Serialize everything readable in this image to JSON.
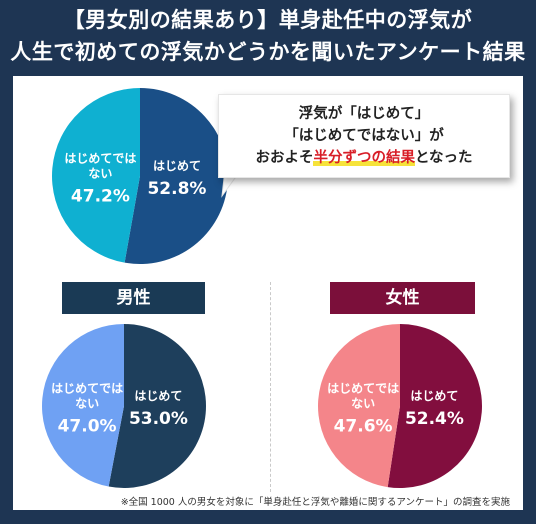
{
  "title": {
    "line1": "【男女別の結果あり】単身赴任中の浮気が",
    "line2": "人生で初めての浮気かどうかを聞いたアンケート結果"
  },
  "callout": {
    "line1": "浮気が「はじめて」",
    "line2": "「はじめてではない」が",
    "line3_pre": "おおよそ",
    "line3_highlight": "半分ずつの結果",
    "line3_post": "となった"
  },
  "footnote": "※全国 1000 人の男女を対象に「単身赴任と浮気や離婚に関するアンケート」の調査を実施",
  "chart_data": [
    {
      "type": "pie",
      "title": "",
      "slices": [
        {
          "label": "はじめて",
          "value": 52.8,
          "value_text": "52.8%",
          "color": "#1a4f87"
        },
        {
          "label": "はじめてではない",
          "value": 47.2,
          "value_text": "47.2%",
          "color": "#0fb0d1"
        }
      ]
    },
    {
      "type": "pie",
      "title": "男性",
      "title_color": "#1a3a55",
      "slices": [
        {
          "label": "はじめて",
          "value": 53.0,
          "value_text": "53.0%",
          "color": "#1e3f5c"
        },
        {
          "label": "はじめてではない",
          "value": 47.0,
          "value_text": "47.0%",
          "color": "#6fa1f3"
        }
      ]
    },
    {
      "type": "pie",
      "title": "女性",
      "title_color": "#7b0f3a",
      "slices": [
        {
          "label": "はじめて",
          "value": 52.4,
          "value_text": "52.4%",
          "color": "#820e3e"
        },
        {
          "label": "はじめてではない",
          "value": 47.6,
          "value_text": "47.6%",
          "color": "#f4858a"
        }
      ]
    }
  ]
}
